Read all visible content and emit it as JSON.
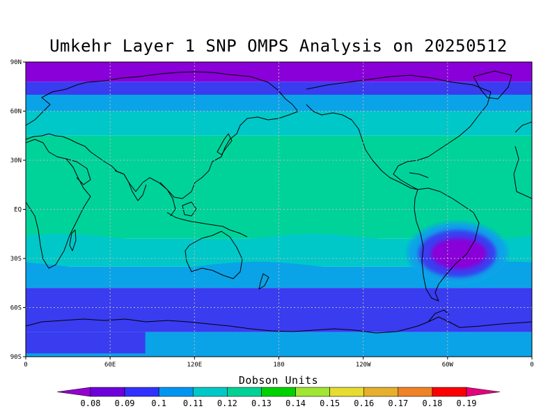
{
  "title": "Umkehr Layer 1 SNP OMPS Analysis on 20250512",
  "map": {
    "lon_range": [
      0,
      360
    ],
    "lat_range": [
      -90,
      90
    ],
    "projection": "cylindrical-equidistant",
    "grid": "dotted",
    "x_ticks": [
      {
        "lon": 0,
        "label": "0"
      },
      {
        "lon": 60,
        "label": "60E"
      },
      {
        "lon": 120,
        "label": "120E"
      },
      {
        "lon": 180,
        "label": "180"
      },
      {
        "lon": 240,
        "label": "120W"
      },
      {
        "lon": 300,
        "label": "60W"
      },
      {
        "lon": 360,
        "label": "0"
      }
    ],
    "y_ticks": [
      {
        "lat": 90,
        "label": "90N"
      },
      {
        "lat": 60,
        "label": "60N"
      },
      {
        "lat": 30,
        "label": "30N"
      },
      {
        "lat": 0,
        "label": "EQ"
      },
      {
        "lat": -30,
        "label": "30S"
      },
      {
        "lat": -60,
        "label": "60S"
      },
      {
        "lat": -90,
        "label": "90S"
      }
    ]
  },
  "field": {
    "bands": [
      {
        "lat_top": 90,
        "lat_bottom": 78,
        "color": "#8a00d8",
        "value": 0.08
      },
      {
        "lat_top": 78,
        "lat_bottom": 70,
        "color": "#3a3cf0",
        "value": 0.09
      },
      {
        "lat_top": 70,
        "lat_bottom": 60,
        "color": "#0aa3e8",
        "value": 0.1
      },
      {
        "lat_top": 60,
        "lat_bottom": 45,
        "color": "#00c8c8",
        "value": 0.11
      },
      {
        "lat_top": 45,
        "lat_bottom": -18,
        "color": "#00d39a",
        "value": 0.12
      },
      {
        "lat_top": -18,
        "lat_bottom": -35,
        "color": "#00c8c8",
        "value": 0.11
      },
      {
        "lat_top": -35,
        "lat_bottom": -48,
        "color": "#0aa3e8",
        "value": 0.1
      },
      {
        "lat_top": -48,
        "lat_bottom": -75,
        "color": "#3a3cf0",
        "value": 0.09
      },
      {
        "lat_top": -75,
        "lat_bottom": -90,
        "color": "#0aa3e8",
        "value": 0.1
      }
    ],
    "anomaly": {
      "center_lon": 307,
      "center_lat": -27,
      "values": [
        0.1,
        0.09,
        0.08
      ],
      "note_colors": [
        "#0aa3e8",
        "#3a3cf0",
        "#8a00d8"
      ]
    }
  },
  "colorbar": {
    "title": "Dobson Units",
    "labels": [
      "0.08",
      "0.09",
      "0.1",
      "0.11",
      "0.12",
      "0.13",
      "0.14",
      "0.15",
      "0.16",
      "0.17",
      "0.18",
      "0.19"
    ],
    "colors": [
      "#9600d2",
      "#6e00dc",
      "#3232ff",
      "#0096f0",
      "#00c8c8",
      "#00d296",
      "#00d200",
      "#a0e632",
      "#e6dc32",
      "#e6af2d",
      "#f08228",
      "#fa0000",
      "#e6007d"
    ]
  }
}
